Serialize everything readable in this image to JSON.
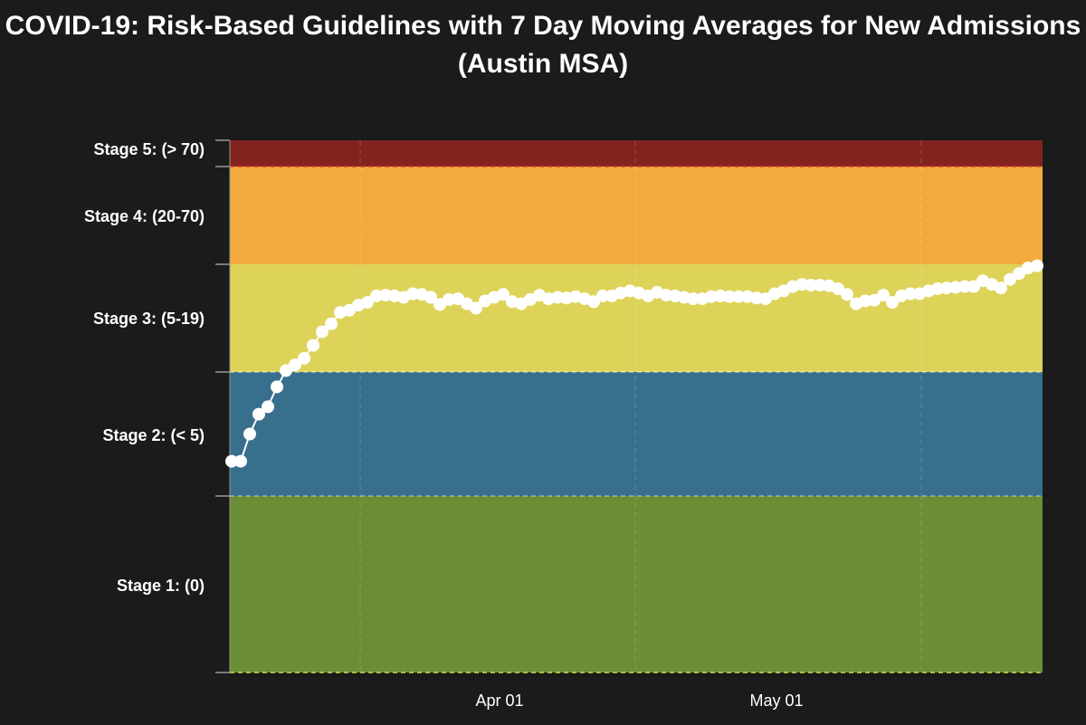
{
  "chart_data": {
    "type": "line",
    "title": "COVID-19: Risk-Based Guidelines with 7 Day Moving Averages for New Admissions (Austin MSA)",
    "xlabel": "",
    "ylabel": "",
    "x_tick_labels": [
      "Apr 01",
      "May 01"
    ],
    "bands": [
      {
        "label": "Stage 1: (0)",
        "color": "#6a8d36"
      },
      {
        "label": "Stage 2: (< 5)",
        "color": "#386f8c"
      },
      {
        "label": "Stage 3: (5-19)",
        "color": "#ded359"
      },
      {
        "label": "Stage 4: (20-70)",
        "color": "#f2aa3e"
      },
      {
        "label": "Stage 5: (> 70)",
        "color": "#82231f"
      }
    ],
    "series": [
      {
        "color": "#ffffff",
        "values": [
          1.4,
          1.4,
          2.5,
          3.3,
          3.6,
          4.4,
          5.2,
          6.0,
          6.9,
          8.7,
          10.6,
          11.7,
          13.3,
          13.6,
          14.3,
          14.7,
          15.6,
          15.7,
          15.6,
          15.4,
          15.9,
          15.8,
          15.4,
          14.4,
          15.1,
          15.2,
          14.5,
          13.9,
          14.9,
          15.4,
          15.8,
          14.8,
          14.5,
          15.1,
          15.7,
          15.2,
          15.4,
          15.3,
          15.5,
          15.2,
          14.8,
          15.6,
          15.6,
          16.0,
          16.3,
          16.0,
          15.6,
          16.1,
          15.7,
          15.6,
          15.4,
          15.2,
          15.2,
          15.5,
          15.6,
          15.5,
          15.5,
          15.5,
          15.3,
          15.2,
          15.9,
          16.3,
          16.9,
          17.2,
          17.1,
          17.1,
          17.0,
          16.6,
          15.8,
          14.5,
          14.9,
          15.0,
          15.7,
          14.7,
          15.6,
          15.9,
          15.9,
          16.3,
          16.6,
          16.7,
          16.8,
          16.9,
          16.9,
          17.7,
          17.2,
          16.7,
          17.9,
          18.7,
          19.5,
          19.8
        ]
      }
    ]
  }
}
